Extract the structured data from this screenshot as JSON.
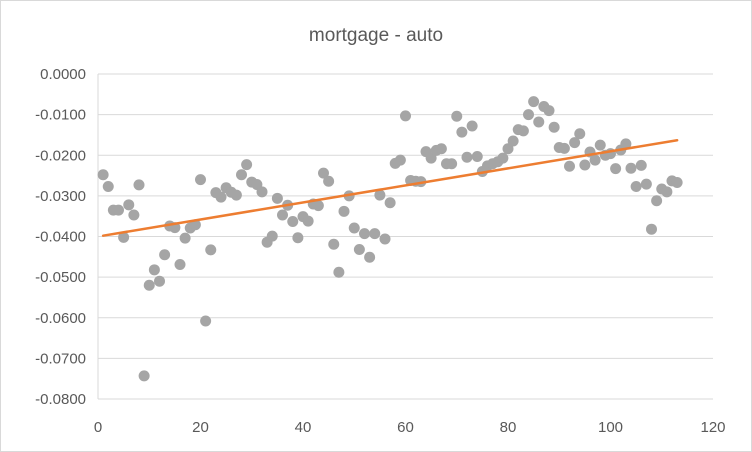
{
  "chart_data": {
    "type": "scatter",
    "title": "mortgage - auto",
    "xlabel": "",
    "ylabel": "",
    "xlim": [
      0,
      120
    ],
    "ylim": [
      -0.08,
      0.0
    ],
    "x_ticks": [
      "0",
      "20",
      "40",
      "60",
      "80",
      "100",
      "120"
    ],
    "y_ticks": [
      "0.0000",
      "-0.0100",
      "-0.0200",
      "-0.0300",
      "-0.0400",
      "-0.0500",
      "-0.0600",
      "-0.0700",
      "-0.0800"
    ],
    "grid": "horizontal",
    "legend": "none",
    "series": [
      {
        "points": [
          [
            1,
            -0.0248
          ],
          [
            2,
            -0.0277
          ],
          [
            3,
            -0.0335
          ],
          [
            4,
            -0.0335
          ],
          [
            5,
            -0.0402
          ],
          [
            6,
            -0.0322
          ],
          [
            7,
            -0.0347
          ],
          [
            8,
            -0.0273
          ],
          [
            9,
            -0.0743
          ],
          [
            10,
            -0.052
          ],
          [
            11,
            -0.0482
          ],
          [
            12,
            -0.051
          ],
          [
            13,
            -0.0445
          ],
          [
            14,
            -0.0374
          ],
          [
            15,
            -0.0378
          ],
          [
            16,
            -0.0469
          ],
          [
            17,
            -0.0404
          ],
          [
            18,
            -0.0379
          ],
          [
            19,
            -0.0371
          ],
          [
            20,
            -0.026
          ],
          [
            21,
            -0.0608
          ],
          [
            22,
            -0.0433
          ],
          [
            23,
            -0.0292
          ],
          [
            24,
            -0.0303
          ],
          [
            25,
            -0.028
          ],
          [
            26,
            -0.0291
          ],
          [
            27,
            -0.0298
          ],
          [
            28,
            -0.0248
          ],
          [
            29,
            -0.0223
          ],
          [
            30,
            -0.0266
          ],
          [
            31,
            -0.0272
          ],
          [
            32,
            -0.029
          ],
          [
            33,
            -0.0414
          ],
          [
            34,
            -0.0399
          ],
          [
            35,
            -0.0306
          ],
          [
            36,
            -0.0347
          ],
          [
            37,
            -0.0323
          ],
          [
            38,
            -0.0363
          ],
          [
            39,
            -0.0403
          ],
          [
            40,
            -0.0351
          ],
          [
            41,
            -0.0362
          ],
          [
            42,
            -0.032
          ],
          [
            43,
            -0.0324
          ],
          [
            44,
            -0.0244
          ],
          [
            45,
            -0.0264
          ],
          [
            46,
            -0.0419
          ],
          [
            47,
            -0.0488
          ],
          [
            48,
            -0.0338
          ],
          [
            49,
            -0.03
          ],
          [
            50,
            -0.0379
          ],
          [
            51,
            -0.0432
          ],
          [
            52,
            -0.0393
          ],
          [
            53,
            -0.0451
          ],
          [
            54,
            -0.0393
          ],
          [
            55,
            -0.0298
          ],
          [
            56,
            -0.0406
          ],
          [
            57,
            -0.0317
          ],
          [
            58,
            -0.022
          ],
          [
            59,
            -0.0212
          ],
          [
            60,
            -0.0103
          ],
          [
            61,
            -0.0262
          ],
          [
            62,
            -0.0264
          ],
          [
            63,
            -0.0265
          ],
          [
            64,
            -0.0191
          ],
          [
            65,
            -0.0207
          ],
          [
            66,
            -0.0188
          ],
          [
            67,
            -0.0184
          ],
          [
            68,
            -0.0221
          ],
          [
            69,
            -0.0221
          ],
          [
            70,
            -0.0104
          ],
          [
            71,
            -0.0143
          ],
          [
            72,
            -0.0205
          ],
          [
            73,
            -0.0128
          ],
          [
            74,
            -0.0203
          ],
          [
            75,
            -0.024
          ],
          [
            76,
            -0.0226
          ],
          [
            77,
            -0.0221
          ],
          [
            78,
            -0.0216
          ],
          [
            79,
            -0.0207
          ],
          [
            80,
            -0.0184
          ],
          [
            81,
            -0.0165
          ],
          [
            82,
            -0.0137
          ],
          [
            83,
            -0.014
          ],
          [
            84,
            -0.01
          ],
          [
            85,
            -0.0068
          ],
          [
            86,
            -0.0118
          ],
          [
            87,
            -0.008
          ],
          [
            88,
            -0.009
          ],
          [
            89,
            -0.0131
          ],
          [
            90,
            -0.0181
          ],
          [
            91,
            -0.0183
          ],
          [
            92,
            -0.0227
          ],
          [
            93,
            -0.0169
          ],
          [
            94,
            -0.0147
          ],
          [
            95,
            -0.0224
          ],
          [
            96,
            -0.0192
          ],
          [
            97,
            -0.0212
          ],
          [
            98,
            -0.0175
          ],
          [
            99,
            -0.02
          ],
          [
            100,
            -0.0196
          ],
          [
            101,
            -0.0233
          ],
          [
            102,
            -0.0187
          ],
          [
            103,
            -0.0172
          ],
          [
            104,
            -0.0232
          ],
          [
            105,
            -0.0277
          ],
          [
            106,
            -0.0225
          ],
          [
            107,
            -0.0271
          ],
          [
            108,
            -0.0382
          ],
          [
            109,
            -0.0312
          ],
          [
            110,
            -0.0283
          ],
          [
            111,
            -0.029
          ],
          [
            112,
            -0.0263
          ],
          [
            113,
            -0.0267
          ]
        ],
        "color": "#a5a5a5"
      }
    ],
    "trendline": {
      "type": "linear",
      "x": [
        1,
        113
      ],
      "y": [
        -0.0398,
        -0.0163
      ],
      "color": "#ed7d31"
    }
  }
}
